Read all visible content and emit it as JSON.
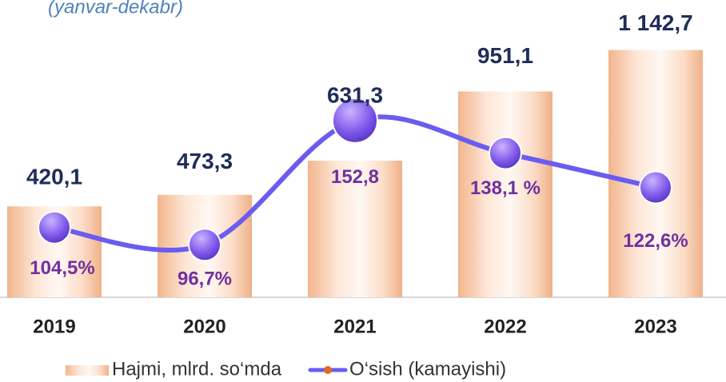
{
  "chart_data": {
    "type": "bar",
    "subtitle": "(yanvar-dekabr)",
    "categories": [
      "2019",
      "2020",
      "2021",
      "2022",
      "2023"
    ],
    "series": [
      {
        "name": "Hajmi, mlrd. so‘mda",
        "type": "bar",
        "color": "#f4c19e",
        "values": [
          420.1,
          473.3,
          631.3,
          951.1,
          1142.7
        ],
        "value_labels": [
          "420,1",
          "473,3",
          "631,3",
          "951,1",
          "1 142,7"
        ]
      },
      {
        "name": "O‘sish (kamayishi)",
        "type": "line",
        "axis": "y2",
        "color": "#6a5cf0",
        "values": [
          104.5,
          96.7,
          152.8,
          138.1,
          122.6
        ],
        "value_labels": [
          "104,5%",
          "96,7%",
          "152,8",
          "138,1 %",
          "122,6%"
        ]
      }
    ],
    "ylim": [
      0,
      1300
    ],
    "y2lim": [
      73,
      200
    ],
    "legend": "bottom"
  }
}
